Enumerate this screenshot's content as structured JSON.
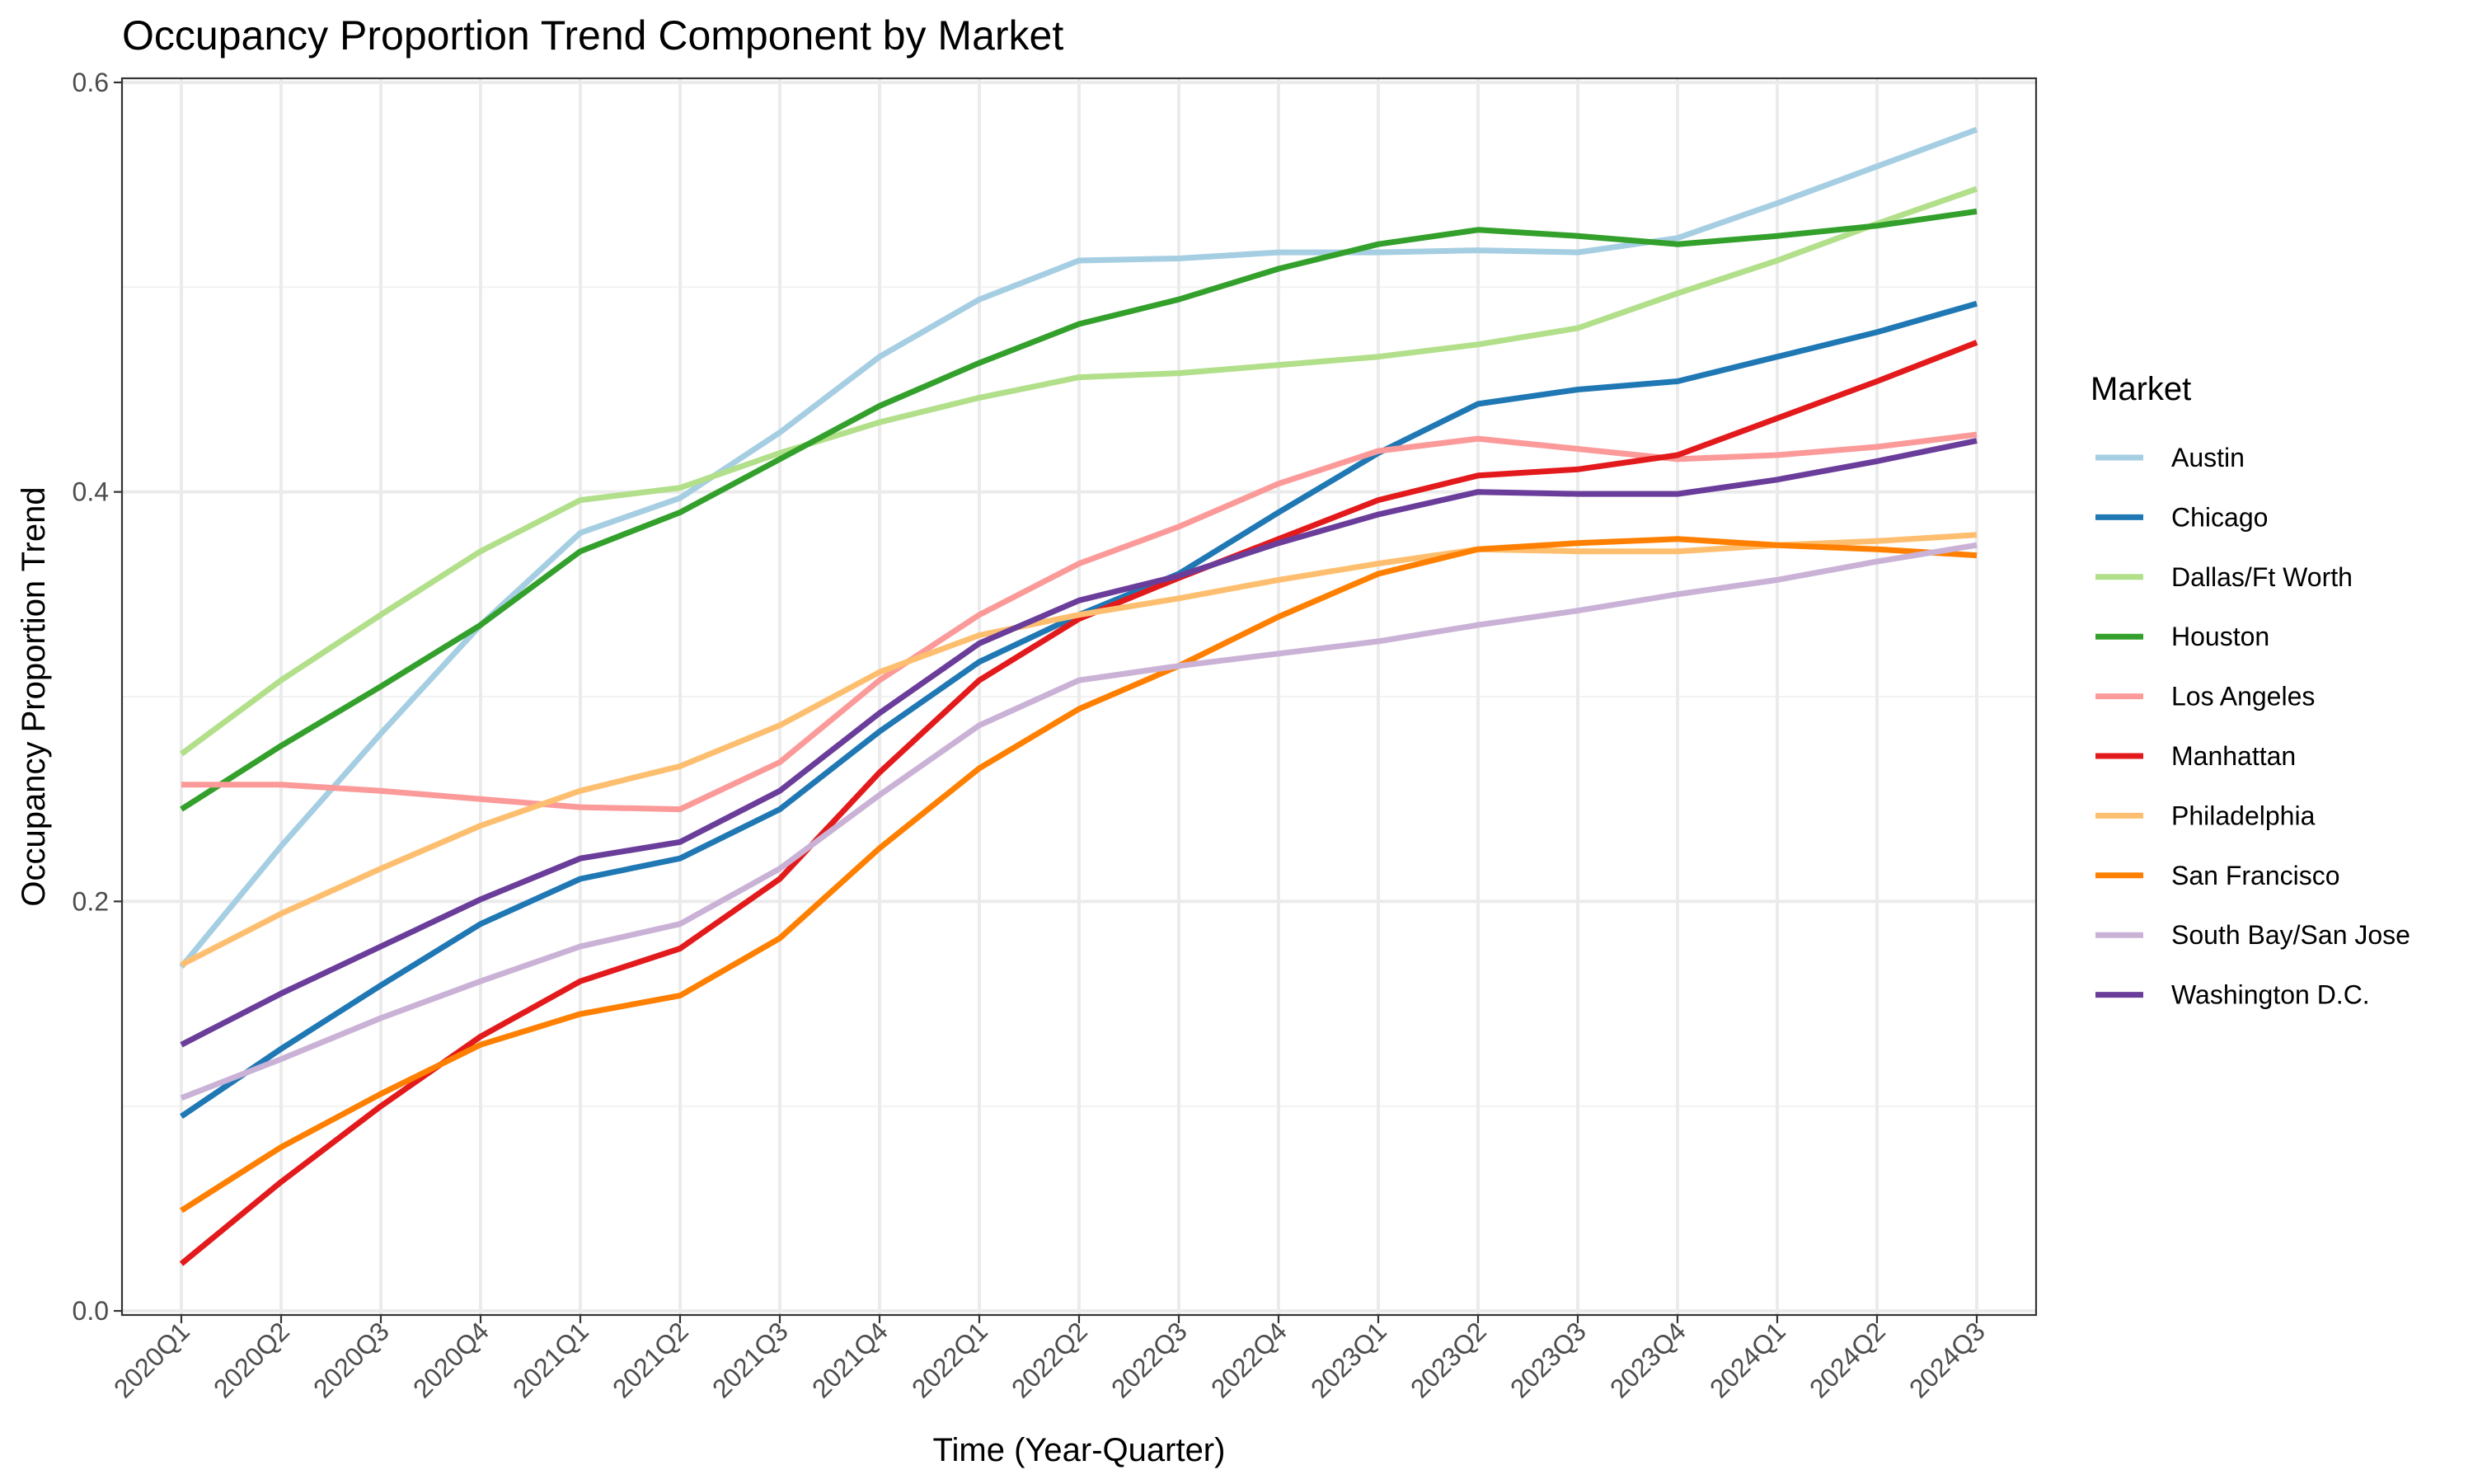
{
  "chart_data": {
    "type": "line",
    "title": "Occupancy Proportion Trend Component by Market",
    "xlabel": "Time (Year-Quarter)",
    "ylabel": "Occupancy Proportion Trend",
    "ylim": [
      -0.002,
      0.602
    ],
    "yticks": [
      0.0,
      0.2,
      0.4,
      0.6
    ],
    "ytick_labels": [
      "0.0",
      "0.2",
      "0.4",
      "0.6"
    ],
    "grid": true,
    "legend_title": "Market",
    "legend_position": "right",
    "categories": [
      "2020Q1",
      "2020Q2",
      "2020Q3",
      "2020Q4",
      "2021Q1",
      "2021Q2",
      "2021Q3",
      "2021Q4",
      "2022Q1",
      "2022Q2",
      "2022Q3",
      "2022Q4",
      "2023Q1",
      "2023Q2",
      "2023Q3",
      "2023Q4",
      "2024Q1",
      "2024Q2",
      "2024Q3"
    ],
    "series": [
      {
        "name": "Austin",
        "color": "#a6cee3",
        "values": [
          0.168,
          0.227,
          0.282,
          0.335,
          0.38,
          0.397,
          0.429,
          0.466,
          0.494,
          0.513,
          0.514,
          0.517,
          0.517,
          0.518,
          0.517,
          0.524,
          0.541,
          0.559,
          0.577
        ]
      },
      {
        "name": "Chicago",
        "color": "#1f78b4",
        "values": [
          0.095,
          0.128,
          0.159,
          0.189,
          0.211,
          0.221,
          0.245,
          0.283,
          0.317,
          0.34,
          0.36,
          0.39,
          0.419,
          0.443,
          0.45,
          0.454,
          0.466,
          0.478,
          0.492
        ]
      },
      {
        "name": "Dallas/Ft Worth",
        "color": "#b2df8a",
        "values": [
          0.272,
          0.308,
          0.34,
          0.371,
          0.396,
          0.402,
          0.419,
          0.434,
          0.446,
          0.456,
          0.458,
          0.462,
          0.466,
          0.472,
          0.48,
          0.497,
          0.513,
          0.531,
          0.548
        ]
      },
      {
        "name": "Houston",
        "color": "#33a02c",
        "values": [
          0.245,
          0.276,
          0.305,
          0.335,
          0.371,
          0.39,
          0.416,
          0.442,
          0.463,
          0.482,
          0.494,
          0.509,
          0.521,
          0.528,
          0.525,
          0.521,
          0.525,
          0.53,
          0.537
        ]
      },
      {
        "name": "Los Angeles",
        "color": "#fb9a99",
        "values": [
          0.257,
          0.257,
          0.254,
          0.25,
          0.246,
          0.245,
          0.268,
          0.308,
          0.34,
          0.365,
          0.383,
          0.404,
          0.42,
          0.426,
          0.421,
          0.416,
          0.418,
          0.422,
          0.428
        ]
      },
      {
        "name": "Manhattan",
        "color": "#e31a1c",
        "values": [
          0.023,
          0.063,
          0.1,
          0.134,
          0.161,
          0.177,
          0.211,
          0.263,
          0.308,
          0.338,
          0.358,
          0.377,
          0.396,
          0.408,
          0.411,
          0.418,
          0.436,
          0.454,
          0.473
        ]
      },
      {
        "name": "Philadelphia",
        "color": "#fdbf6f",
        "values": [
          0.169,
          0.194,
          0.216,
          0.237,
          0.254,
          0.266,
          0.286,
          0.312,
          0.33,
          0.34,
          0.348,
          0.357,
          0.365,
          0.372,
          0.371,
          0.371,
          0.374,
          0.376,
          0.379
        ]
      },
      {
        "name": "San Francisco",
        "color": "#ff7f00",
        "values": [
          0.049,
          0.08,
          0.106,
          0.13,
          0.145,
          0.154,
          0.182,
          0.226,
          0.265,
          0.294,
          0.315,
          0.339,
          0.36,
          0.372,
          0.375,
          0.377,
          0.374,
          0.372,
          0.369
        ]
      },
      {
        "name": "South Bay/San Jose",
        "color": "#cab2d6",
        "values": [
          0.104,
          0.123,
          0.143,
          0.161,
          0.178,
          0.189,
          0.216,
          0.252,
          0.286,
          0.308,
          0.315,
          0.321,
          0.327,
          0.335,
          0.342,
          0.35,
          0.357,
          0.366,
          0.374
        ]
      },
      {
        "name": "Washington D.C.",
        "color": "#6a3d9a",
        "values": [
          0.13,
          0.155,
          0.178,
          0.201,
          0.221,
          0.229,
          0.254,
          0.292,
          0.326,
          0.347,
          0.359,
          0.375,
          0.389,
          0.4,
          0.399,
          0.399,
          0.406,
          0.415,
          0.425
        ]
      }
    ]
  }
}
